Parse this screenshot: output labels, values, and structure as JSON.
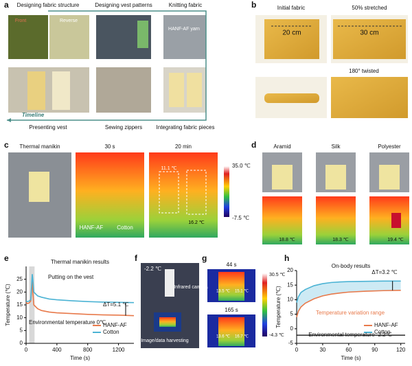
{
  "panels": {
    "a": {
      "label": "a",
      "titles": [
        "Designing fabric structure",
        "Designing vest patterns",
        "Knitting fabric"
      ],
      "captions": [
        "Presenting vest",
        "Sewing zippers",
        "Integrating fabric pieces"
      ],
      "insets": [
        "Front",
        "Reverse",
        "HANF-AF yarn"
      ],
      "timeline": "Timeline"
    },
    "b": {
      "label": "b",
      "titles": [
        "Initial fabric",
        "50% stretched",
        "180° twisted"
      ],
      "insets": [
        "20 cm",
        "30 cm"
      ]
    },
    "c": {
      "label": "c",
      "titles": [
        "Thermal manikin",
        "30 s",
        "20 min"
      ],
      "insets": [
        "HANF-AF",
        "Cotton",
        "11.1 ℃",
        "16.2 ℃"
      ],
      "colorbar": [
        "35.0 ℃",
        "-7.5 ℃"
      ]
    },
    "d": {
      "label": "d",
      "titles": [
        "Aramid",
        "Silk",
        "Polyester"
      ],
      "insets": [
        "18.8 ℃",
        "18.3 ℃",
        "19.4 ℃"
      ]
    },
    "e": {
      "label": "e"
    },
    "f": {
      "label": "f",
      "insets": [
        "-2.2 ℃",
        "Infrared camera",
        "Image/data harvesting"
      ]
    },
    "g": {
      "label": "g",
      "titles": [
        "44 s",
        "165 s"
      ],
      "insets": [
        "13.5 ℃",
        "15.1 ℃",
        "13.6 ℃",
        "16.7 ℃"
      ],
      "colorbar": [
        "30.5 ℃",
        "-4.3 ℃"
      ]
    },
    "h": {
      "label": "h"
    }
  },
  "chart_data": [
    {
      "type": "line",
      "title": "Thermal manikin results",
      "xlabel": "Time (s)",
      "ylabel": "Temperature (℃)",
      "x": [
        0,
        20,
        40,
        60,
        70,
        80,
        90,
        100,
        150,
        200,
        300,
        400,
        600,
        800,
        1000,
        1200,
        1400
      ],
      "series": [
        {
          "name": "HANF-AF",
          "color": "#e8794a",
          "values": [
            16,
            15.5,
            15.8,
            16.5,
            20,
            25,
            19,
            15,
            13.5,
            12.8,
            12.2,
            11.9,
            11.6,
            11.3,
            11.1,
            11,
            10.8
          ]
        },
        {
          "name": "Cotton",
          "color": "#4bb3d4",
          "values": [
            16.5,
            16.3,
            16.5,
            17,
            22,
            27,
            24,
            20,
            18.5,
            18,
            17.3,
            17,
            16.6,
            16.3,
            16.1,
            16,
            15.9
          ]
        }
      ],
      "xlim": [
        0,
        1400
      ],
      "ylim": [
        0,
        30
      ],
      "xticks": [
        0,
        400,
        800,
        1200
      ],
      "yticks": [
        0,
        5,
        10,
        15,
        20,
        25
      ],
      "shade": [
        40,
        110
      ],
      "legend": "lower right",
      "annotations": [
        "Putting on the vest",
        "ΔT=5.1 ℃",
        "Environmental temperature 0℃"
      ]
    },
    {
      "type": "line",
      "title": "On-body results",
      "xlabel": "Time (s)",
      "ylabel": "Temperature (℃)",
      "x": [
        0,
        2,
        5,
        10,
        20,
        30,
        40,
        50,
        60,
        80,
        100,
        120
      ],
      "series": [
        {
          "name": "HANF-AF",
          "color": "#e8794a",
          "values": [
            4,
            6,
            7.5,
            8.8,
            10.3,
            11.3,
            11.9,
            12.3,
            12.6,
            12.9,
            13.1,
            13.2
          ]
        },
        {
          "name": "Cotton",
          "color": "#4bb3d4",
          "values": [
            9,
            11,
            12.5,
            13.5,
            14.8,
            15.5,
            15.9,
            16.1,
            16.2,
            16.3,
            16.4,
            16.4
          ]
        }
      ],
      "xlim": [
        0,
        125
      ],
      "ylim": [
        -5,
        20
      ],
      "xticks": [
        0,
        30,
        60,
        90,
        120
      ],
      "yticks": [
        -5,
        0,
        5,
        10,
        15,
        20
      ],
      "hline": -2.2,
      "hline_color": "#000000",
      "fill_between_color": "#cdeaf4",
      "legend": "lower right",
      "annotations": [
        "ΔT=3.2 ℃",
        "Temperature variation range",
        "Environmental temperature -2.2℃"
      ]
    }
  ]
}
